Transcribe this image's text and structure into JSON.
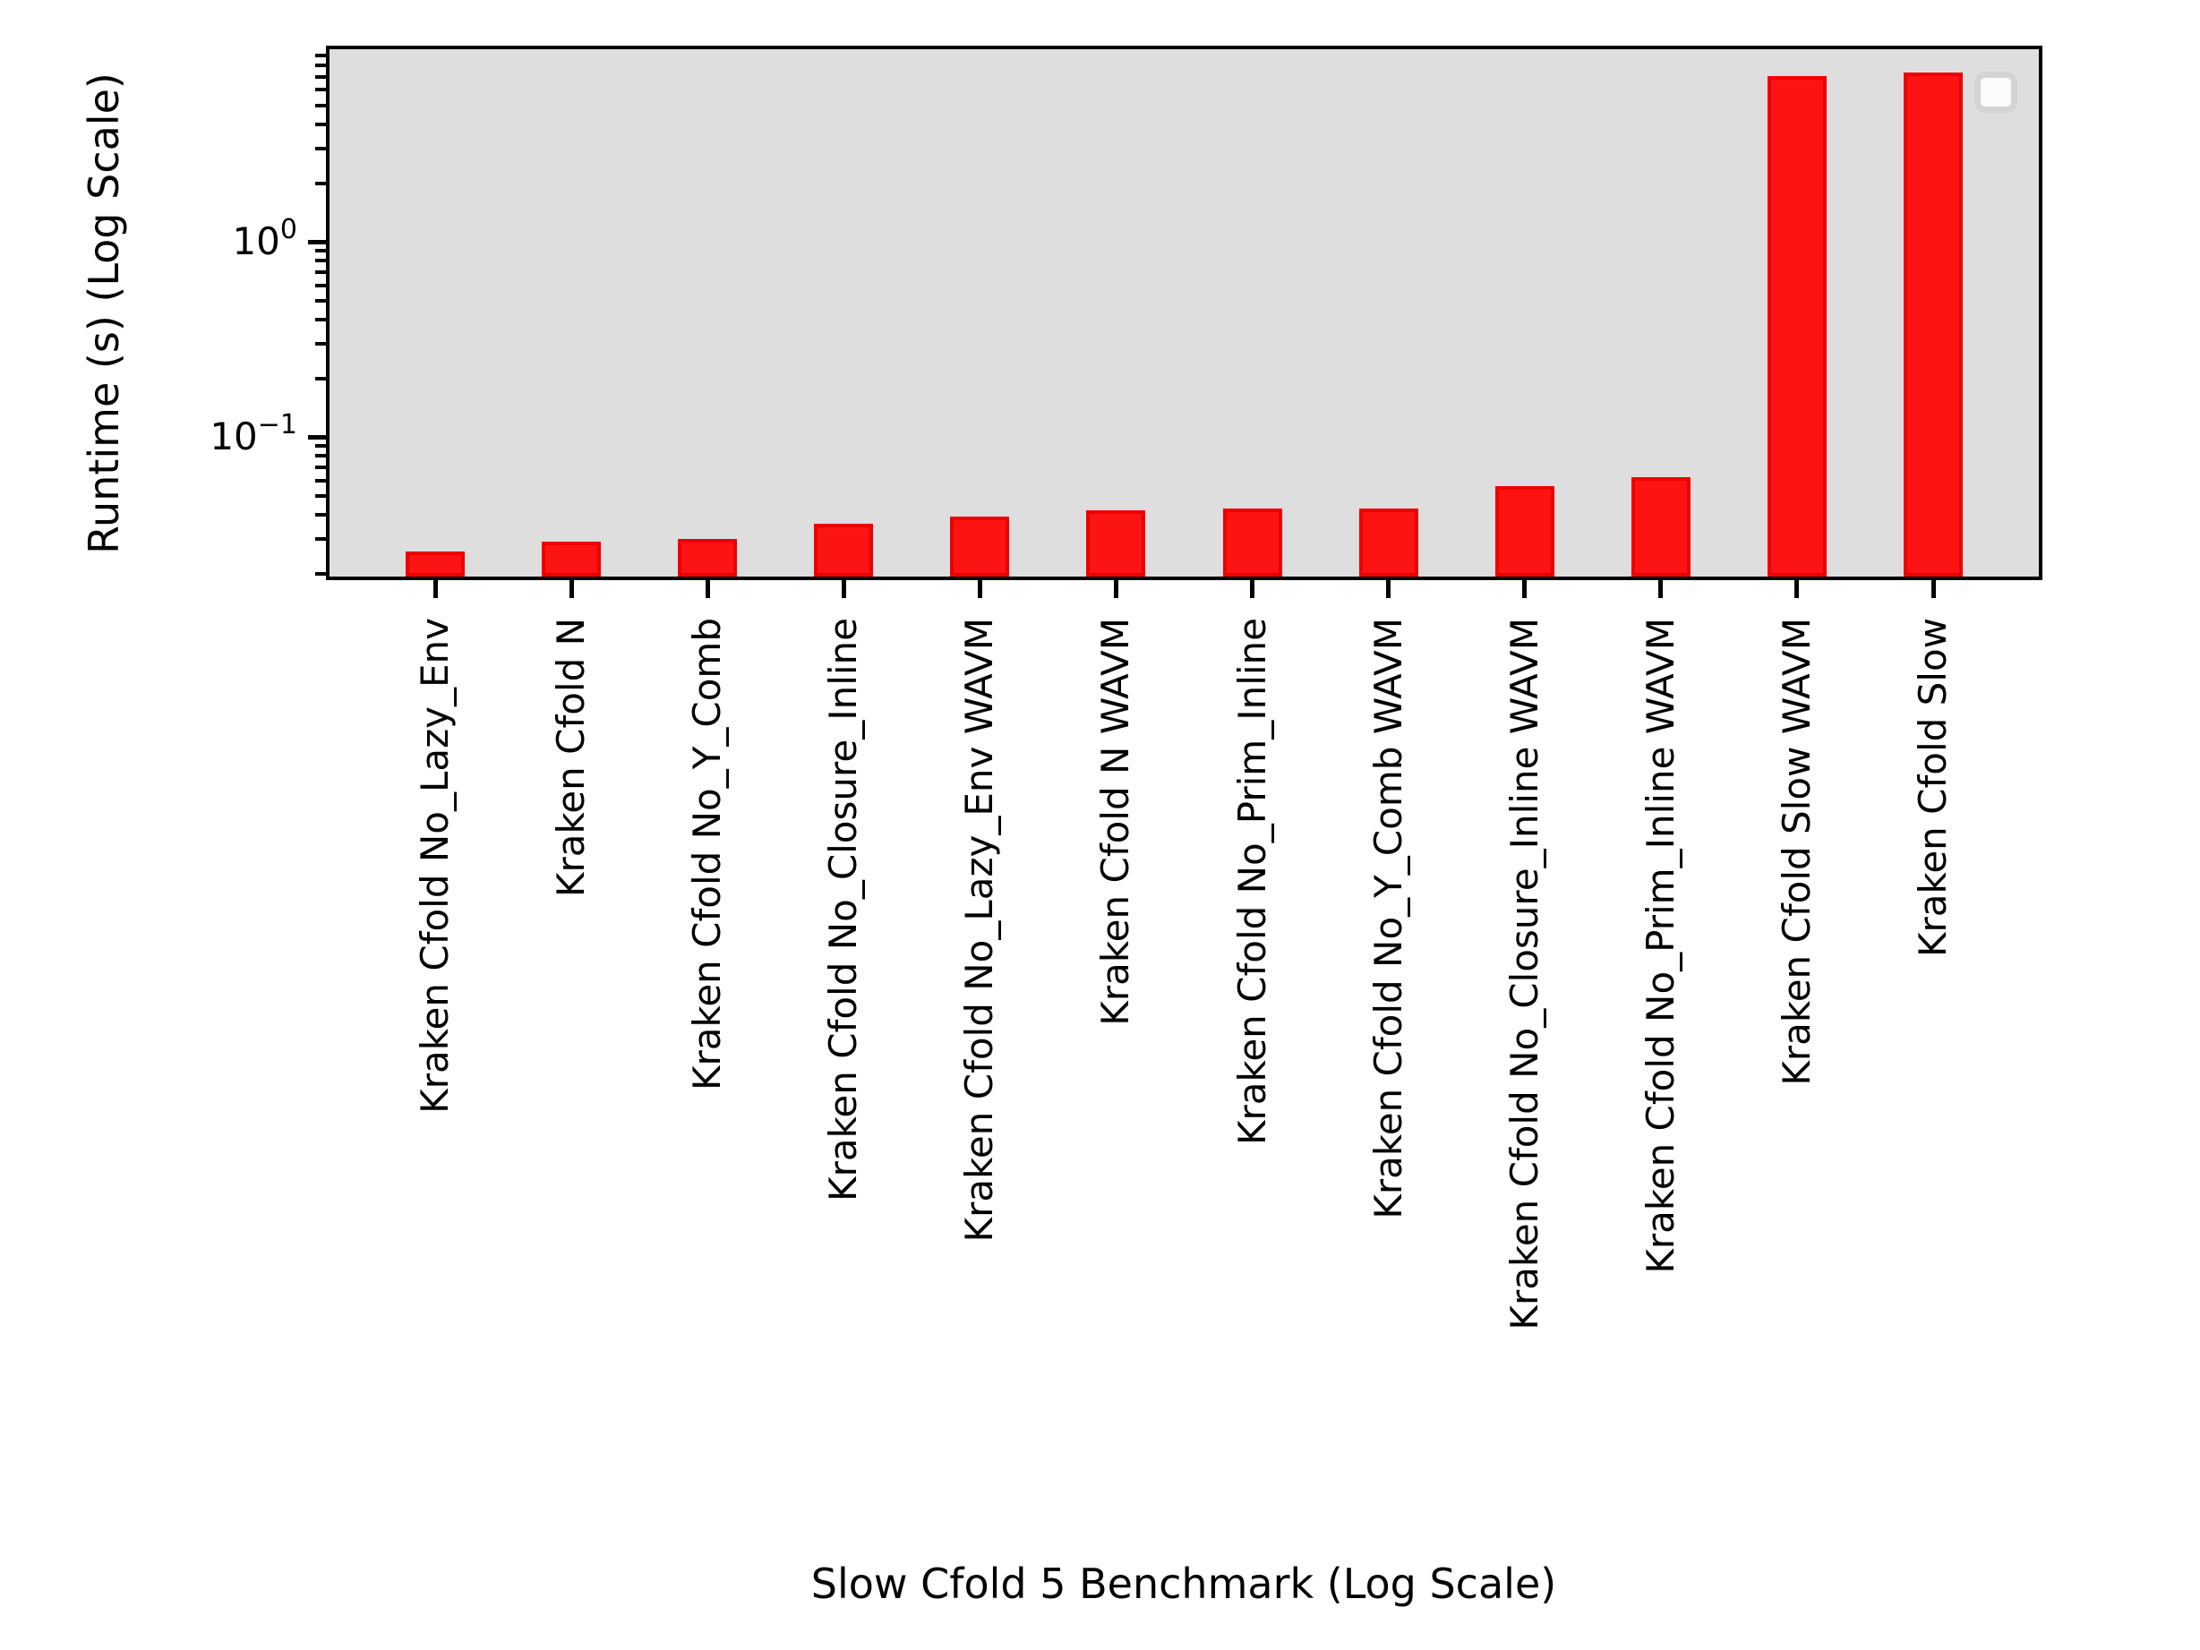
{
  "chart_data": {
    "type": "bar",
    "title": "",
    "xlabel": "Slow Cfold 5 Benchmark (Log Scale)",
    "ylabel": "Runtime (s) (Log Scale)",
    "yscale": "log",
    "ylim": [
      0.0193,
      9.7
    ],
    "grid": false,
    "legend": {
      "visible": true,
      "entries": []
    },
    "categories": [
      "Kraken Cfold No_Lazy_Env",
      "Kraken Cfold N",
      "Kraken Cfold No_Y_Comb",
      "Kraken Cfold No_Closure_Inline",
      "Kraken Cfold No_Lazy_Env WAVM",
      "Kraken Cfold N WAVM",
      "Kraken Cfold No_Prim_Inline",
      "Kraken Cfold No_Y_Comb WAVM",
      "Kraken Cfold No_Closure_Inline WAVM",
      "Kraken Cfold No_Prim_Inline WAVM",
      "Kraken Cfold Slow WAVM",
      "Kraken Cfold Slow"
    ],
    "values": [
      0.026,
      0.029,
      0.03,
      0.036,
      0.039,
      0.042,
      0.043,
      0.043,
      0.056,
      0.062,
      7.1,
      7.4
    ],
    "yticks": [
      {
        "value": 1,
        "base": "10",
        "exp": "0"
      },
      {
        "value": 0.1,
        "base": "10",
        "exp": "−1"
      }
    ],
    "colors": {
      "bar_fill": "#fb1412",
      "bar_edge": "#ef0000",
      "plot_background": "#dedede",
      "spine": "#000000",
      "text": "#000000",
      "legend_fill": "#fbfbfb",
      "legend_edge": "#d4d4d4"
    }
  }
}
